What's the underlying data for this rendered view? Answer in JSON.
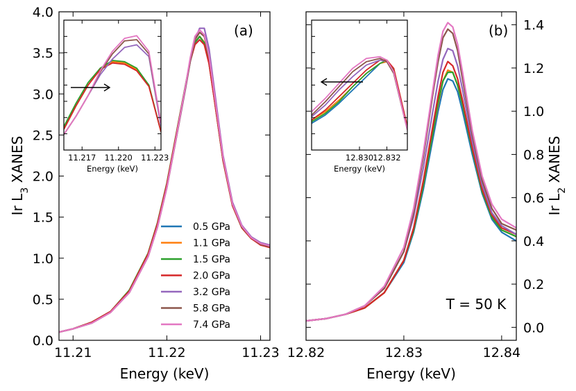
{
  "chart_data": [
    {
      "type": "line",
      "panel_label": "(a)",
      "xlabel": "Energy (keV)",
      "ylabel": "Ir L3 XANES",
      "ylabel_main": "Ir L",
      "ylabel_sub": "3",
      "ylabel_tail": " XANES",
      "xlim": [
        11.2085,
        11.231
      ],
      "ylim": [
        0.0,
        4.0
      ],
      "xticks": [
        11.21,
        11.22,
        11.23
      ],
      "xtick_labels": [
        "11.21",
        "11.22",
        "11.23"
      ],
      "yticks": [
        0.0,
        0.5,
        1.0,
        1.5,
        2.0,
        2.5,
        3.0,
        3.5,
        4.0
      ],
      "ytick_labels": [
        "0.0",
        "0.5",
        "1.0",
        "1.5",
        "2.0",
        "2.5",
        "3.0",
        "3.5",
        "4.0"
      ],
      "x": [
        11.2085,
        11.21,
        11.212,
        11.214,
        11.216,
        11.218,
        11.219,
        11.22,
        11.221,
        11.222,
        11.2225,
        11.223,
        11.2235,
        11.224,
        11.2245,
        11.225,
        11.2255,
        11.226,
        11.227,
        11.228,
        11.229,
        11.23,
        11.231
      ],
      "series": [
        {
          "name": "0.5 GPa",
          "values": [
            0.1,
            0.14,
            0.22,
            0.35,
            0.6,
            1.05,
            1.42,
            1.9,
            2.5,
            3.1,
            3.4,
            3.62,
            3.7,
            3.62,
            3.38,
            3.0,
            2.6,
            2.2,
            1.65,
            1.38,
            1.25,
            1.18,
            1.15
          ]
        },
        {
          "name": "1.1 GPa",
          "values": [
            0.1,
            0.14,
            0.22,
            0.35,
            0.6,
            1.05,
            1.42,
            1.9,
            2.5,
            3.1,
            3.41,
            3.63,
            3.7,
            3.63,
            3.39,
            3.0,
            2.6,
            2.2,
            1.65,
            1.37,
            1.24,
            1.17,
            1.14
          ]
        },
        {
          "name": "1.5 GPa",
          "values": [
            0.1,
            0.14,
            0.22,
            0.35,
            0.61,
            1.06,
            1.43,
            1.91,
            2.51,
            3.11,
            3.41,
            3.63,
            3.7,
            3.62,
            3.38,
            3.0,
            2.59,
            2.19,
            1.64,
            1.37,
            1.24,
            1.17,
            1.14
          ]
        },
        {
          "name": "2.0 GPa",
          "values": [
            0.1,
            0.14,
            0.22,
            0.35,
            0.6,
            1.05,
            1.42,
            1.9,
            2.5,
            3.1,
            3.4,
            3.6,
            3.66,
            3.6,
            3.37,
            2.99,
            2.59,
            2.19,
            1.64,
            1.37,
            1.24,
            1.16,
            1.13
          ]
        },
        {
          "name": "3.2 GPa",
          "values": [
            0.1,
            0.14,
            0.21,
            0.34,
            0.58,
            1.02,
            1.38,
            1.86,
            2.46,
            3.07,
            3.4,
            3.66,
            3.8,
            3.8,
            3.55,
            3.12,
            2.68,
            2.25,
            1.68,
            1.4,
            1.26,
            1.19,
            1.16
          ]
        },
        {
          "name": "5.8 GPa",
          "values": [
            0.1,
            0.14,
            0.21,
            0.34,
            0.58,
            1.02,
            1.38,
            1.86,
            2.46,
            3.08,
            3.4,
            3.66,
            3.75,
            3.7,
            3.46,
            3.05,
            2.63,
            2.22,
            1.66,
            1.38,
            1.25,
            1.17,
            1.14
          ]
        },
        {
          "name": "7.4 GPa",
          "values": [
            0.1,
            0.14,
            0.21,
            0.34,
            0.58,
            1.02,
            1.38,
            1.86,
            2.47,
            3.1,
            3.44,
            3.7,
            3.78,
            3.72,
            3.47,
            3.06,
            2.64,
            2.23,
            1.66,
            1.39,
            1.25,
            1.18,
            1.15
          ]
        }
      ],
      "inset": {
        "xlabel": "Energy (keV)",
        "xlim": [
          11.2155,
          11.2235
        ],
        "ylim": [
          3.35,
          3.85
        ],
        "xticks": [
          11.217,
          11.22,
          11.223
        ],
        "xtick_labels": [
          "11.217",
          "11.220",
          "11.223"
        ],
        "arrow": "right",
        "x": [
          11.2155,
          11.2165,
          11.2175,
          11.2185,
          11.2195,
          11.2205,
          11.2215,
          11.2225,
          11.2235
        ],
        "series": [
          {
            "name": "0.5 GPa",
            "values": [
              3.43,
              3.52,
              3.6,
              3.665,
              3.69,
              3.685,
              3.66,
              3.6,
              3.42
            ]
          },
          {
            "name": "1.1 GPa",
            "values": [
              3.43,
              3.52,
              3.6,
              3.665,
              3.69,
              3.685,
              3.66,
              3.6,
              3.42
            ]
          },
          {
            "name": "1.5 GPa",
            "values": [
              3.44,
              3.53,
              3.61,
              3.665,
              3.695,
              3.69,
              3.665,
              3.6,
              3.42
            ]
          },
          {
            "name": "2.0 GPa",
            "values": [
              3.43,
              3.52,
              3.6,
              3.66,
              3.685,
              3.68,
              3.655,
              3.595,
              3.42
            ]
          },
          {
            "name": "3.2 GPa",
            "values": [
              3.41,
              3.48,
              3.56,
              3.64,
              3.7,
              3.745,
              3.755,
              3.71,
              3.44
            ]
          },
          {
            "name": "5.8 GPa",
            "values": [
              3.41,
              3.48,
              3.56,
              3.65,
              3.72,
              3.77,
              3.775,
              3.72,
              3.45
            ]
          },
          {
            "name": "7.4 GPa",
            "values": [
              3.41,
              3.48,
              3.56,
              3.655,
              3.73,
              3.78,
              3.79,
              3.73,
              3.45
            ]
          }
        ]
      }
    },
    {
      "type": "line",
      "panel_label": "(b)",
      "annotation": "T = 50 K",
      "xlabel": "Energy (keV)",
      "ylabel": "Ir L2 XANES",
      "ylabel_main": "Ir L",
      "ylabel_sub": "2",
      "ylabel_tail": " XANES",
      "xlim": [
        12.82,
        12.8415
      ],
      "ylim": [
        -0.06,
        1.46
      ],
      "xticks": [
        12.82,
        12.83,
        12.84
      ],
      "xtick_labels": [
        "12.82",
        "12.83",
        "12.84"
      ],
      "yticks": [
        0.0,
        0.2,
        0.4,
        0.6,
        0.8,
        1.0,
        1.2,
        1.4
      ],
      "ytick_labels": [
        "0.0",
        "0.2",
        "0.4",
        "0.6",
        "0.8",
        "1.0",
        "1.2",
        "1.4"
      ],
      "x": [
        12.82,
        12.822,
        12.824,
        12.826,
        12.828,
        12.83,
        12.831,
        12.832,
        12.833,
        12.8335,
        12.834,
        12.8345,
        12.835,
        12.8355,
        12.836,
        12.837,
        12.838,
        12.839,
        12.84,
        12.8415
      ],
      "series": [
        {
          "name": "0.5 GPa",
          "values": [
            0.03,
            0.04,
            0.06,
            0.09,
            0.16,
            0.3,
            0.44,
            0.64,
            0.88,
            1.0,
            1.1,
            1.15,
            1.14,
            1.09,
            1.0,
            0.8,
            0.62,
            0.5,
            0.44,
            0.4
          ]
        },
        {
          "name": "1.1 GPa",
          "values": [
            0.03,
            0.04,
            0.06,
            0.09,
            0.16,
            0.31,
            0.45,
            0.66,
            0.91,
            1.03,
            1.14,
            1.19,
            1.18,
            1.12,
            1.03,
            0.82,
            0.63,
            0.51,
            0.45,
            0.42
          ]
        },
        {
          "name": "1.5 GPa",
          "values": [
            0.03,
            0.04,
            0.06,
            0.09,
            0.16,
            0.31,
            0.45,
            0.66,
            0.91,
            1.04,
            1.14,
            1.18,
            1.18,
            1.12,
            1.03,
            0.82,
            0.63,
            0.51,
            0.45,
            0.42
          ]
        },
        {
          "name": "2.0 GPa",
          "values": [
            0.03,
            0.04,
            0.06,
            0.09,
            0.16,
            0.31,
            0.46,
            0.68,
            0.94,
            1.07,
            1.18,
            1.23,
            1.21,
            1.15,
            1.05,
            0.83,
            0.64,
            0.52,
            0.46,
            0.43
          ]
        },
        {
          "name": "3.2 GPa",
          "values": [
            0.03,
            0.04,
            0.06,
            0.1,
            0.18,
            0.35,
            0.51,
            0.74,
            1.01,
            1.14,
            1.24,
            1.29,
            1.28,
            1.21,
            1.1,
            0.86,
            0.66,
            0.53,
            0.47,
            0.43
          ]
        },
        {
          "name": "5.8 GPa",
          "values": [
            0.03,
            0.04,
            0.06,
            0.1,
            0.18,
            0.35,
            0.53,
            0.79,
            1.09,
            1.23,
            1.34,
            1.38,
            1.36,
            1.28,
            1.15,
            0.89,
            0.68,
            0.55,
            0.48,
            0.45
          ]
        },
        {
          "name": "7.4 GPa",
          "values": [
            0.03,
            0.04,
            0.06,
            0.1,
            0.19,
            0.37,
            0.55,
            0.81,
            1.11,
            1.26,
            1.37,
            1.41,
            1.39,
            1.31,
            1.18,
            0.91,
            0.7,
            0.57,
            0.5,
            0.46
          ]
        }
      ],
      "inset": {
        "xlabel": "Energy (keV)",
        "xlim": [
          12.8265,
          12.8335
        ],
        "ylim": [
          1.08,
          1.47
        ],
        "xticks": [
          12.83,
          12.832
        ],
        "xtick_labels": [
          "12.830",
          "12.832"
        ],
        "arrow": "left",
        "x": [
          12.8265,
          12.8275,
          12.8285,
          12.8295,
          12.8305,
          12.8315,
          12.832,
          12.8325,
          12.8335
        ],
        "series": [
          {
            "name": "0.5 GPa",
            "values": [
              1.16,
              1.185,
              1.22,
              1.26,
              1.3,
              1.34,
              1.345,
              1.325,
              1.15
            ]
          },
          {
            "name": "1.1 GPa",
            "values": [
              1.17,
              1.195,
              1.23,
              1.27,
              1.31,
              1.34,
              1.345,
              1.325,
              1.15
            ]
          },
          {
            "name": "1.5 GPa",
            "values": [
              1.165,
              1.19,
              1.225,
              1.27,
              1.31,
              1.34,
              1.35,
              1.32,
              1.15
            ]
          },
          {
            "name": "2.0 GPa",
            "values": [
              1.17,
              1.2,
              1.24,
              1.28,
              1.32,
              1.35,
              1.35,
              1.325,
              1.15
            ]
          },
          {
            "name": "3.2 GPa",
            "values": [
              1.18,
              1.215,
              1.26,
              1.3,
              1.335,
              1.35,
              1.345,
              1.315,
              1.14
            ]
          },
          {
            "name": "5.8 GPa",
            "values": [
              1.185,
              1.225,
              1.27,
              1.315,
              1.345,
              1.355,
              1.345,
              1.31,
              1.14
            ]
          },
          {
            "name": "7.4 GPa",
            "values": [
              1.195,
              1.235,
              1.28,
              1.325,
              1.355,
              1.36,
              1.35,
              1.315,
              1.14
            ]
          }
        ]
      }
    }
  ],
  "legend": {
    "placement": "lower-right of panel (a)",
    "items": [
      "0.5 GPa",
      "1.1 GPa",
      "1.5 GPa",
      "2.0 GPa",
      "3.2 GPa",
      "5.8 GPa",
      "7.4 GPa"
    ]
  },
  "colors": [
    "#1f77b4",
    "#ff7f0e",
    "#2ca02c",
    "#d62728",
    "#9467bd",
    "#8c564b",
    "#e377c2"
  ]
}
